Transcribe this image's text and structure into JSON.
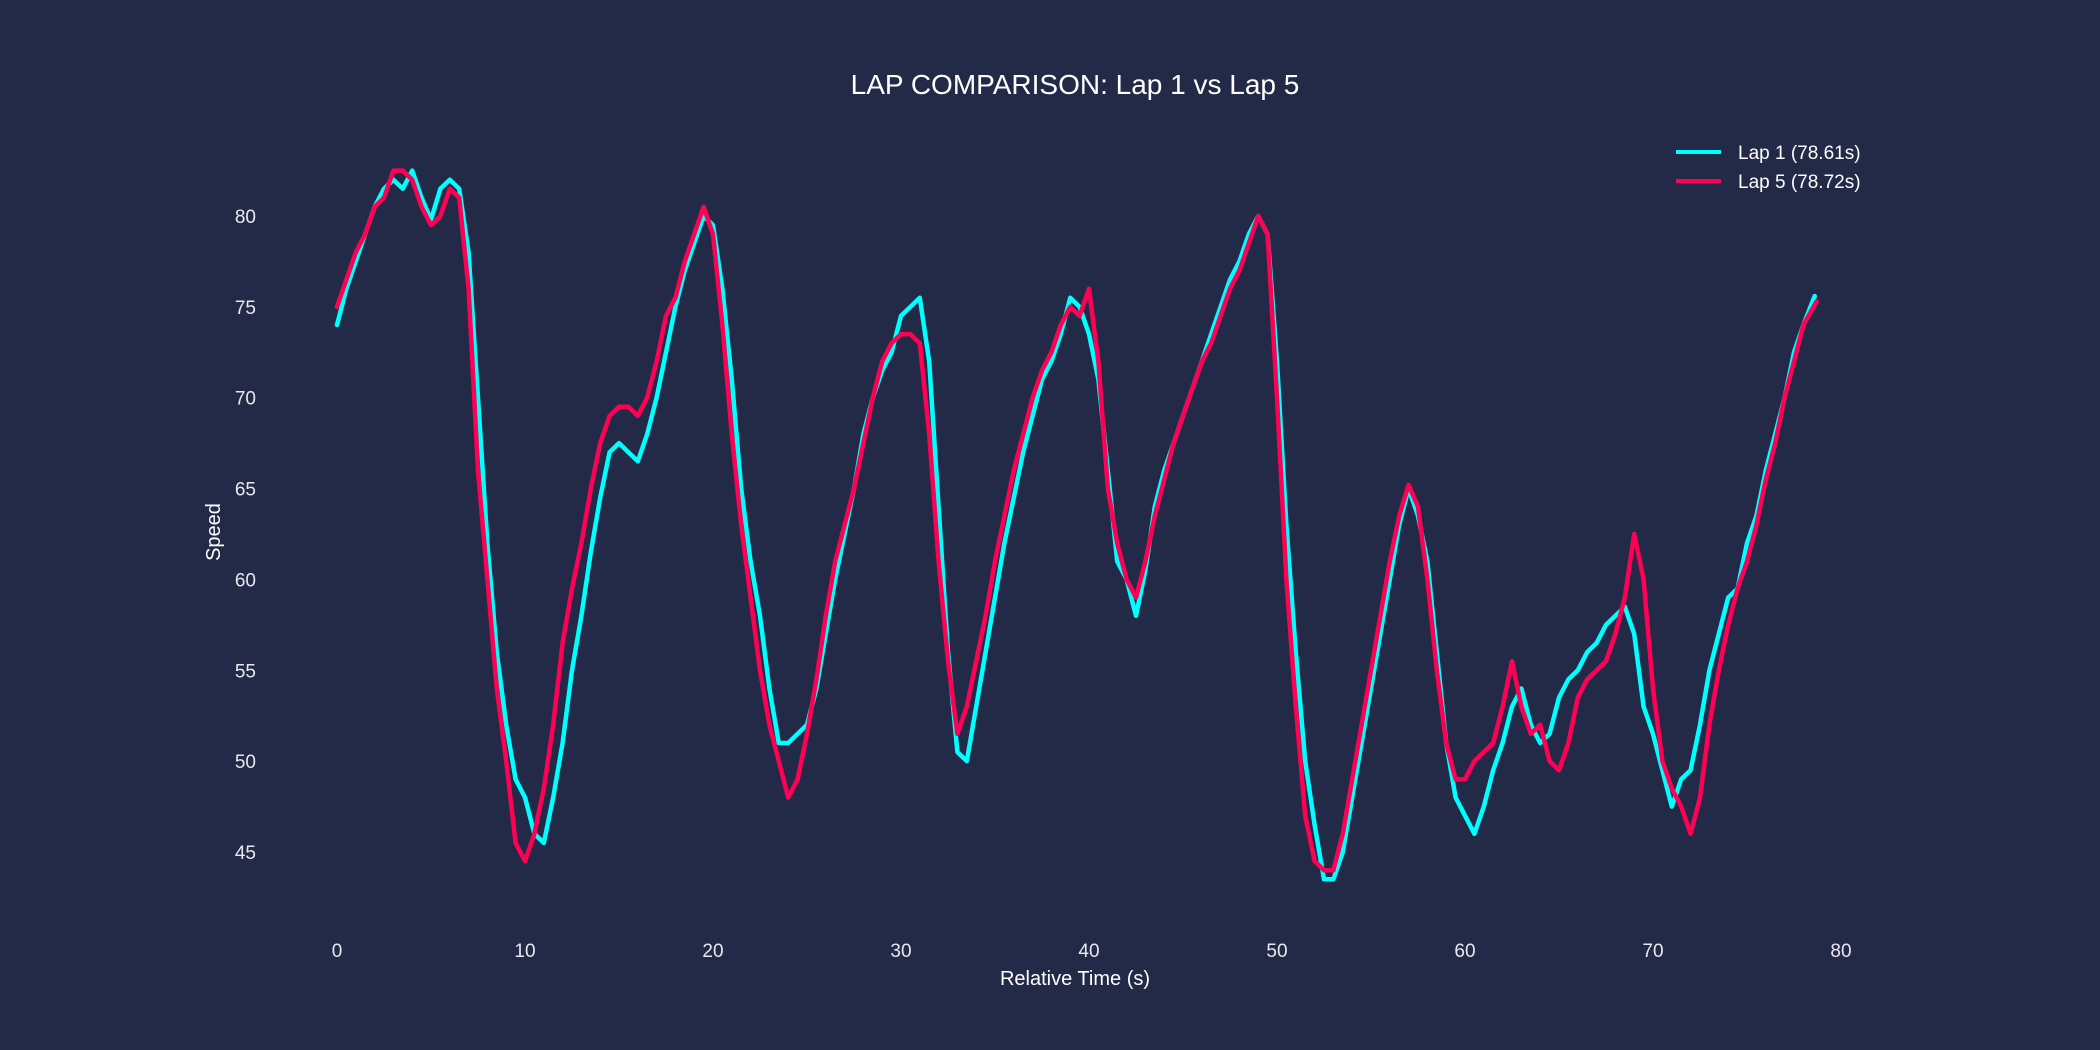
{
  "chart_data": {
    "type": "line",
    "title": "LAP COMPARISON: Lap 1 vs Lap 5",
    "xlabel": "Relative Time (s)",
    "ylabel": "Speed",
    "xlim": [
      0,
      80
    ],
    "ylim": [
      45,
      80
    ],
    "xticks": [
      0,
      10,
      20,
      30,
      40,
      50,
      60,
      70,
      80
    ],
    "yticks": [
      45,
      50,
      55,
      60,
      65,
      70,
      75,
      80
    ],
    "grid": false,
    "legend_position": "top-right",
    "background": "#232a47",
    "series": [
      {
        "name": "Lap 1 (78.61s)",
        "color": "#00ffff",
        "x": [
          0,
          0.5,
          1,
          1.5,
          2,
          2.5,
          3,
          3.5,
          4,
          4.5,
          5,
          5.5,
          6,
          6.5,
          7,
          7.5,
          8,
          8.5,
          9,
          9.5,
          10,
          10.5,
          11,
          11.5,
          12,
          12.5,
          13,
          13.5,
          14,
          14.5,
          15,
          15.5,
          16,
          16.5,
          17,
          17.5,
          18,
          18.5,
          19,
          19.5,
          20,
          20.5,
          21,
          21.5,
          22,
          22.5,
          23,
          23.5,
          24,
          24.5,
          25,
          25.5,
          26,
          26.5,
          27,
          27.5,
          28,
          28.5,
          29,
          29.5,
          30,
          30.5,
          31,
          31.5,
          32,
          32.5,
          33,
          33.5,
          34,
          34.5,
          35,
          35.5,
          36,
          36.5,
          37,
          37.5,
          38,
          38.5,
          39,
          39.5,
          40,
          40.5,
          41,
          41.5,
          42,
          42.5,
          43,
          43.5,
          44,
          44.5,
          45,
          45.5,
          46,
          46.5,
          47,
          47.5,
          48,
          48.5,
          49,
          49.5,
          50,
          50.5,
          51,
          51.5,
          52,
          52.5,
          53,
          53.5,
          54,
          54.5,
          55,
          55.5,
          56,
          56.5,
          57,
          57.5,
          58,
          58.5,
          59,
          59.5,
          60,
          60.5,
          61,
          61.5,
          62,
          62.5,
          63,
          63.5,
          64,
          64.5,
          65,
          65.5,
          66,
          66.5,
          67,
          67.5,
          68,
          68.5,
          69,
          69.5,
          70,
          70.5,
          71,
          71.5,
          72,
          72.5,
          73,
          73.5,
          74,
          74.5,
          75,
          75.5,
          76,
          76.5,
          77,
          77.5,
          78,
          78.6
        ],
        "y": [
          74,
          76,
          77.5,
          79,
          80.5,
          81.5,
          82,
          81.5,
          82.5,
          81,
          79.8,
          81.5,
          82,
          81.5,
          78,
          70,
          62,
          56,
          52,
          49,
          48,
          46,
          45.5,
          48,
          51,
          55,
          58,
          61.5,
          64.5,
          67,
          67.5,
          67,
          66.5,
          68,
          70,
          72.5,
          75,
          77,
          78.5,
          80,
          79.5,
          76,
          71,
          65,
          61,
          58,
          54,
          51,
          51,
          51.5,
          52,
          54,
          57,
          60,
          62.5,
          65,
          68,
          70,
          71.5,
          72.5,
          74.5,
          75,
          75.5,
          72,
          64,
          56,
          50.5,
          50,
          53,
          56,
          59,
          62,
          64.5,
          67,
          69,
          71,
          72,
          73.5,
          75.5,
          75,
          73.5,
          71,
          66,
          61,
          60,
          58,
          60.5,
          64,
          66,
          67.5,
          69,
          70.5,
          72,
          73.5,
          75,
          76.5,
          77.5,
          79,
          80,
          79,
          72,
          63,
          56,
          50,
          46.5,
          43.5,
          43.5,
          45,
          48,
          51,
          54,
          57,
          60,
          63,
          65,
          63.5,
          61,
          56,
          51,
          48,
          47,
          46,
          47.5,
          49.5,
          51,
          53,
          54,
          52,
          51,
          51.5,
          53.5,
          54.5,
          55,
          56,
          56.5,
          57.5,
          58,
          58.5,
          57,
          53,
          51.5,
          49.5,
          47.5,
          49,
          49.5,
          52,
          55,
          57,
          59,
          59.5,
          62,
          63.5,
          66,
          68,
          70,
          72.5,
          74,
          75.6
        ]
      },
      {
        "name": "Lap 5 (78.72s)",
        "color": "#ff0055",
        "x": [
          0,
          0.5,
          1,
          1.5,
          2,
          2.5,
          3,
          3.5,
          4,
          4.5,
          5,
          5.5,
          6,
          6.5,
          7,
          7.5,
          8,
          8.5,
          9,
          9.5,
          10,
          10.5,
          11,
          11.5,
          12,
          12.5,
          13,
          13.5,
          14,
          14.5,
          15,
          15.5,
          16,
          16.5,
          17,
          17.5,
          18,
          18.5,
          19,
          19.5,
          20,
          20.5,
          21,
          21.5,
          22,
          22.5,
          23,
          23.5,
          24,
          24.5,
          25,
          25.5,
          26,
          26.5,
          27,
          27.5,
          28,
          28.5,
          29,
          29.5,
          30,
          30.5,
          31,
          31.5,
          32,
          32.5,
          33,
          33.5,
          34,
          34.5,
          35,
          35.5,
          36,
          36.5,
          37,
          37.5,
          38,
          38.5,
          39,
          39.5,
          40,
          40.5,
          41,
          41.5,
          42,
          42.5,
          43,
          43.5,
          44,
          44.5,
          45,
          45.5,
          46,
          46.5,
          47,
          47.5,
          48,
          48.5,
          49,
          49.5,
          50,
          50.5,
          51,
          51.5,
          52,
          52.5,
          53,
          53.5,
          54,
          54.5,
          55,
          55.5,
          56,
          56.5,
          57,
          57.5,
          58,
          58.5,
          59,
          59.5,
          60,
          60.5,
          61,
          61.5,
          62,
          62.5,
          63,
          63.5,
          64,
          64.5,
          65,
          65.5,
          66,
          66.5,
          67,
          67.5,
          68,
          68.5,
          69,
          69.5,
          70,
          70.5,
          71,
          71.5,
          72,
          72.5,
          73,
          73.5,
          74,
          74.5,
          75,
          75.5,
          76,
          76.5,
          77,
          77.5,
          78,
          78.7
        ],
        "y": [
          75,
          76.5,
          78,
          79,
          80.5,
          81,
          82.5,
          82.5,
          82,
          80.5,
          79.5,
          80,
          81.5,
          81,
          76,
          66,
          60,
          54,
          50,
          45.5,
          44.5,
          46,
          48.5,
          52,
          56.5,
          59.5,
          62,
          65,
          67.5,
          69,
          69.5,
          69.5,
          69,
          70,
          72,
          74.5,
          75.5,
          77.5,
          79,
          80.5,
          79,
          74,
          68,
          63,
          59,
          55,
          52,
          50,
          48,
          49,
          51.5,
          54.5,
          58,
          61,
          63,
          65,
          67.5,
          70,
          72,
          73,
          73.5,
          73.5,
          73,
          68,
          61,
          55.5,
          51.5,
          53,
          55.5,
          58,
          61,
          63.5,
          66,
          68,
          70,
          71.5,
          72.5,
          74,
          75,
          74.5,
          76,
          72,
          65,
          62,
          60,
          59,
          61,
          63.5,
          65.5,
          67.5,
          69,
          70.5,
          72,
          73,
          74.5,
          76,
          77,
          78.5,
          80,
          79,
          70,
          60,
          53,
          47,
          44.5,
          44,
          44,
          46,
          49,
          52,
          55,
          58,
          61,
          63.5,
          65.2,
          64,
          60,
          55,
          51,
          49,
          49,
          50,
          50.5,
          51,
          53,
          55.5,
          53,
          51.5,
          52,
          50,
          49.5,
          51,
          53.5,
          54.5,
          55,
          55.5,
          57,
          59,
          62.5,
          60,
          54,
          50,
          48.5,
          47.5,
          46,
          48,
          52,
          55,
          57.5,
          59.5,
          61,
          63,
          65.5,
          67.5,
          70,
          72,
          74,
          75.3
        ]
      }
    ]
  }
}
